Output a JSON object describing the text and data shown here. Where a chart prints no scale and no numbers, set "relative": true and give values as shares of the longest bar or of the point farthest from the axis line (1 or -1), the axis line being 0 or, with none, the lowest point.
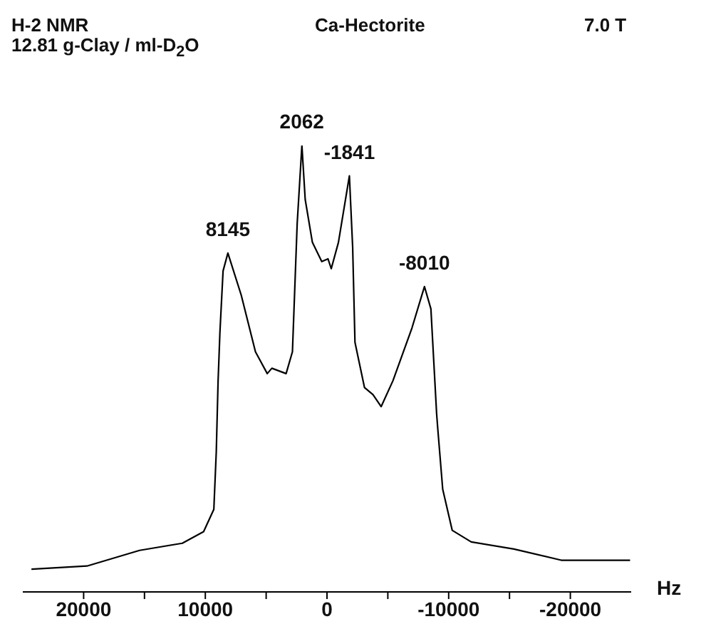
{
  "chart_data": {
    "type": "line",
    "title": "H-2 NMR",
    "subtitle": "12.81 g-Clay / ml-D$_{2}$O",
    "xlabel": "Hz",
    "relative": true,
    "marker": "none",
    "line_style": "solid",
    "annotations": [
      "Ca-Hectorite",
      "7.0 T",
      {
        "text": "8145",
        "x": 8145,
        "y": 0.759
      },
      {
        "text": "2062",
        "x": 2062,
        "y": 1.0
      },
      {
        "text": "-1841",
        "x": -1841,
        "y": 0.932
      },
      {
        "text": "-8010",
        "x": -8010,
        "y": 0.684
      }
    ],
    "xlim": [
      25000,
      -25000
    ],
    "xticks": [
      20000,
      {
        "value": 15000,
        "label": null
      },
      10000,
      {
        "value": 5000,
        "label": null
      },
      0,
      {
        "value": -5000,
        "label": null
      },
      -10000,
      {
        "value": -15000,
        "label": null
      },
      -20000
    ],
    "x": [
      24290,
      19730,
      15400,
      11890,
      10140,
      9300,
      9100,
      8950,
      8800,
      8540,
      8145,
      7050,
      5880,
      4910,
      4530,
      3360,
      2840,
      2450,
      2062,
      1790,
      1200,
      430,
      -83,
      -350,
      -940,
      -1841,
      -2110,
      -2300,
      -3080,
      -3780,
      -4450,
      -5420,
      -6980,
      -8010,
      -8540,
      -9010,
      -9100,
      -9510,
      -10290,
      -11850,
      -15360,
      -19250,
      -24910
    ],
    "series": [
      {
        "color": "#000000",
        "values": [
          0.051,
          0.058,
          0.093,
          0.109,
          0.135,
          0.185,
          0.313,
          0.472,
          0.581,
          0.719,
          0.759,
          0.665,
          0.538,
          0.489,
          0.501,
          0.489,
          0.538,
          0.825,
          1.0,
          0.879,
          0.783,
          0.74,
          0.746,
          0.724,
          0.783,
          0.932,
          0.772,
          0.559,
          0.458,
          0.442,
          0.415,
          0.473,
          0.591,
          0.684,
          0.634,
          0.399,
          0.367,
          0.23,
          0.138,
          0.112,
          0.096,
          0.071,
          0.071
        ]
      }
    ]
  }
}
